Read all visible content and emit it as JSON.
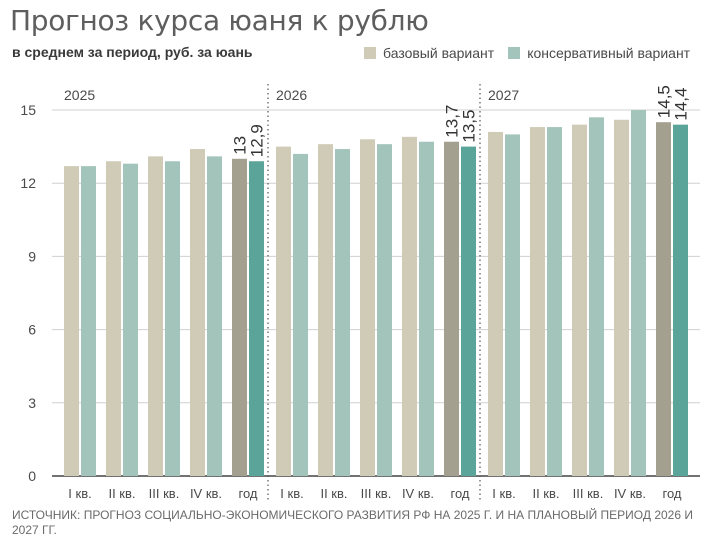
{
  "title": "Прогноз курса юаня к рублю",
  "subtitle": "в среднем за период, руб. за юань",
  "source": "ИСТОЧНИК: ПРОГНОЗ СОЦИАЛЬНО-ЭКОНОМИЧЕСКОГО РАЗВИТИЯ РФ НА 2025 Г. И НА ПЛАНОВЫЙ ПЕРИОД 2026 И 2027 ГГ.",
  "colors": {
    "base": "#cfcbb6",
    "cons": "#a3c4bb",
    "base_year": "#a3a08f",
    "cons_year": "#5aa49a",
    "grid": "#d0d0d0",
    "divider": "#555555"
  },
  "chart_data": {
    "type": "bar",
    "ylim": [
      0,
      15
    ],
    "yticks": [
      "0",
      "3",
      "6",
      "9",
      "12",
      "15"
    ],
    "legend": [
      "базовый вариант",
      "консервативный вариант"
    ],
    "legend_position": "top-right",
    "grid": true,
    "groups": [
      {
        "year": "2025",
        "categories": [
          "I кв.",
          "II кв.",
          "III кв.",
          "IV кв.",
          "год"
        ],
        "base": [
          12.7,
          12.9,
          13.1,
          13.4,
          13.0
        ],
        "cons": [
          12.7,
          12.8,
          12.9,
          13.1,
          12.9
        ],
        "annual_labels": {
          "base": "13",
          "cons": "12,9"
        }
      },
      {
        "year": "2026",
        "categories": [
          "I кв.",
          "II кв.",
          "III кв.",
          "IV кв.",
          "год"
        ],
        "base": [
          13.5,
          13.6,
          13.8,
          13.9,
          13.7
        ],
        "cons": [
          13.2,
          13.4,
          13.6,
          13.7,
          13.5
        ],
        "annual_labels": {
          "base": "13,7",
          "cons": "13,5"
        }
      },
      {
        "year": "2027",
        "categories": [
          "I кв.",
          "II кв.",
          "III кв.",
          "IV кв.",
          "год"
        ],
        "base": [
          14.1,
          14.3,
          14.4,
          14.6,
          14.5
        ],
        "cons": [
          14.0,
          14.3,
          14.7,
          15.0,
          14.4
        ],
        "annual_labels": {
          "base": "14,5",
          "cons": "14,4"
        }
      }
    ]
  }
}
